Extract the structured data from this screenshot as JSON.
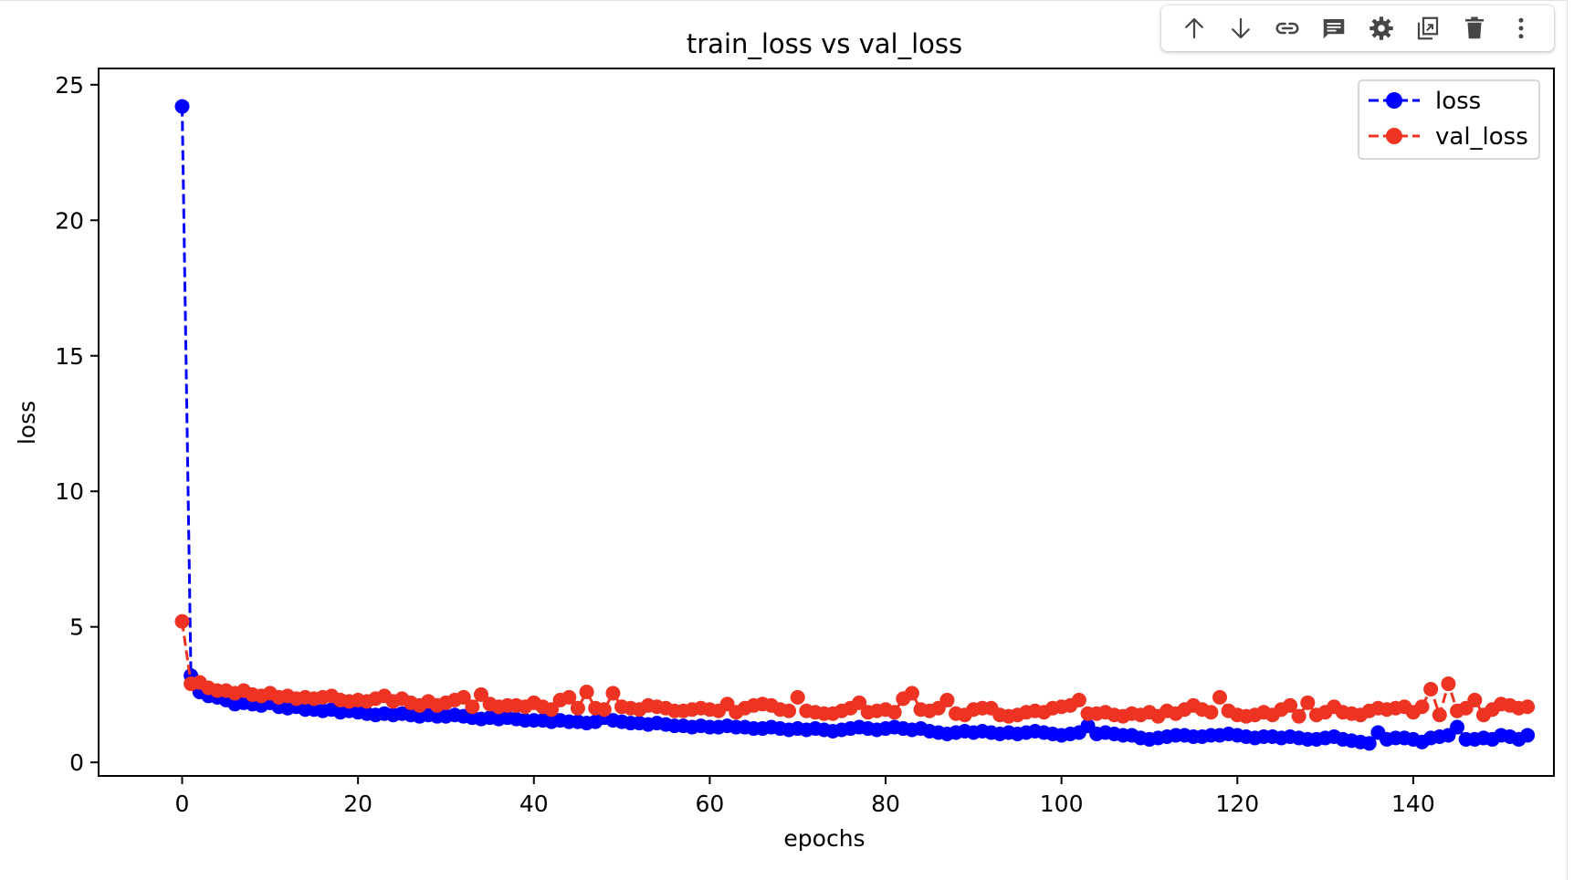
{
  "toolbar": {
    "buttons": [
      {
        "name": "move-up-button",
        "icon": "arrow-up-icon"
      },
      {
        "name": "move-down-button",
        "icon": "arrow-down-icon"
      },
      {
        "name": "link-button",
        "icon": "link-icon"
      },
      {
        "name": "comment-button",
        "icon": "comment-icon"
      },
      {
        "name": "settings-button",
        "icon": "gear-icon"
      },
      {
        "name": "mirror-cell-button",
        "icon": "mirror-icon"
      },
      {
        "name": "delete-button",
        "icon": "trash-icon"
      },
      {
        "name": "more-button",
        "icon": "more-vert-icon"
      }
    ],
    "icon_color": "#444746"
  },
  "chart_data": {
    "type": "line",
    "title": "train_loss vs val_loss",
    "xlabel": "epochs",
    "ylabel": "loss",
    "xlim": [
      -9.5,
      156
    ],
    "ylim": [
      -0.5,
      25.6
    ],
    "xticks": [
      0,
      20,
      40,
      60,
      80,
      100,
      120,
      140
    ],
    "yticks": [
      0,
      5,
      10,
      15,
      20,
      25
    ],
    "grid": false,
    "legend_position": "top-right",
    "x_range": [
      0,
      149
    ],
    "series": [
      {
        "name": "loss",
        "color": "#0000ff",
        "linestyle": "dashed",
        "marker": "circle",
        "values": [
          24.2,
          3.2,
          2.6,
          2.45,
          2.4,
          2.3,
          2.15,
          2.2,
          2.15,
          2.1,
          2.2,
          2.05,
          2.0,
          2.05,
          1.95,
          1.95,
          1.9,
          1.95,
          1.85,
          1.9,
          1.85,
          1.8,
          1.75,
          1.8,
          1.75,
          1.8,
          1.75,
          1.7,
          1.75,
          1.7,
          1.7,
          1.75,
          1.7,
          1.65,
          1.6,
          1.65,
          1.6,
          1.65,
          1.6,
          1.55,
          1.55,
          1.55,
          1.5,
          1.55,
          1.5,
          1.5,
          1.45,
          1.5,
          1.65,
          1.55,
          1.5,
          1.45,
          1.45,
          1.4,
          1.45,
          1.4,
          1.35,
          1.35,
          1.3,
          1.35,
          1.3,
          1.3,
          1.35,
          1.3,
          1.3,
          1.25,
          1.25,
          1.3,
          1.25,
          1.2,
          1.25,
          1.2,
          1.25,
          1.2,
          1.15,
          1.2,
          1.25,
          1.3,
          1.25,
          1.2,
          1.25,
          1.3,
          1.25,
          1.2,
          1.25,
          1.15,
          1.1,
          1.05,
          1.1,
          1.15,
          1.1,
          1.15,
          1.1,
          1.05,
          1.1,
          1.05,
          1.1,
          1.15,
          1.1,
          1.05,
          1.0,
          1.05,
          1.1,
          1.35,
          1.05,
          1.1,
          1.05,
          1.0,
          1.0,
          0.9,
          0.85,
          0.9,
          0.95,
          1.0,
          1.0,
          0.95,
          0.95,
          1.0,
          1.0,
          1.05,
          1.0,
          0.95,
          0.9,
          0.95,
          0.95,
          0.9,
          0.95,
          0.9,
          0.85,
          0.85,
          0.9,
          0.95,
          0.85,
          0.8,
          0.75,
          0.7,
          1.1,
          0.85,
          0.9,
          0.9,
          0.85,
          0.75,
          0.9,
          0.95,
          1.0,
          1.3,
          0.85,
          0.85,
          0.9,
          0.85,
          1.0,
          0.95,
          0.85,
          1.0
        ]
      },
      {
        "name": "val_loss",
        "color": "#ee3322",
        "linestyle": "dashed",
        "marker": "circle",
        "values": [
          5.2,
          2.9,
          2.95,
          2.75,
          2.65,
          2.65,
          2.55,
          2.65,
          2.5,
          2.45,
          2.55,
          2.4,
          2.45,
          2.35,
          2.4,
          2.35,
          2.4,
          2.45,
          2.3,
          2.25,
          2.3,
          2.25,
          2.35,
          2.45,
          2.25,
          2.35,
          2.2,
          2.1,
          2.25,
          2.1,
          2.2,
          2.3,
          2.4,
          2.05,
          2.5,
          2.15,
          2.05,
          2.1,
          2.1,
          2.05,
          2.2,
          2.05,
          1.95,
          2.3,
          2.4,
          2.0,
          2.6,
          2.0,
          1.95,
          2.55,
          2.05,
          2.0,
          1.95,
          2.1,
          2.05,
          2.0,
          1.9,
          1.9,
          1.95,
          2.0,
          1.95,
          1.9,
          2.15,
          1.85,
          2.0,
          2.1,
          2.15,
          2.1,
          1.95,
          1.9,
          2.4,
          1.9,
          1.85,
          1.8,
          1.8,
          1.9,
          2.0,
          2.2,
          1.85,
          1.9,
          1.95,
          1.85,
          2.35,
          2.55,
          1.95,
          1.9,
          2.0,
          2.3,
          1.8,
          1.75,
          1.95,
          2.0,
          2.0,
          1.75,
          1.7,
          1.75,
          1.85,
          1.9,
          1.85,
          2.0,
          2.05,
          2.1,
          2.3,
          1.8,
          1.8,
          1.85,
          1.75,
          1.7,
          1.8,
          1.75,
          1.85,
          1.7,
          1.9,
          1.8,
          1.95,
          2.1,
          1.95,
          1.85,
          2.4,
          1.9,
          1.75,
          1.7,
          1.75,
          1.85,
          1.75,
          1.95,
          2.1,
          1.7,
          2.2,
          1.75,
          1.85,
          2.05,
          1.85,
          1.8,
          1.75,
          1.9,
          2.0,
          1.95,
          2.0,
          2.05,
          1.85,
          2.05,
          2.7,
          1.75,
          2.9,
          1.9,
          2.0,
          2.3,
          1.75,
          1.95,
          2.15,
          2.1,
          2.0,
          2.05
        ]
      }
    ]
  }
}
